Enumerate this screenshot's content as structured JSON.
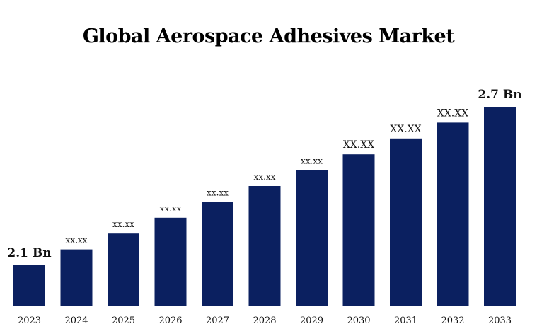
{
  "chart_data": {
    "type": "bar",
    "title": "Global Aerospace Adhesives Market",
    "categories": [
      "2023",
      "2024",
      "2025",
      "2026",
      "2027",
      "2028",
      "2029",
      "2030",
      "2031",
      "2032",
      "2033"
    ],
    "values": [
      2.1,
      2.16,
      2.22,
      2.28,
      2.34,
      2.4,
      2.46,
      2.52,
      2.58,
      2.64,
      2.7
    ],
    "data_labels": [
      "2.1 Bn",
      "xx.xx",
      "xx.xx",
      "xx.xx",
      "xx.xx",
      "xx.xx",
      "xx.xx",
      "XX.XX",
      "XX.XX",
      "XX.XX",
      "2.7 Bn"
    ],
    "bar_color": "#0b2060",
    "grid": false,
    "legend": "none"
  }
}
